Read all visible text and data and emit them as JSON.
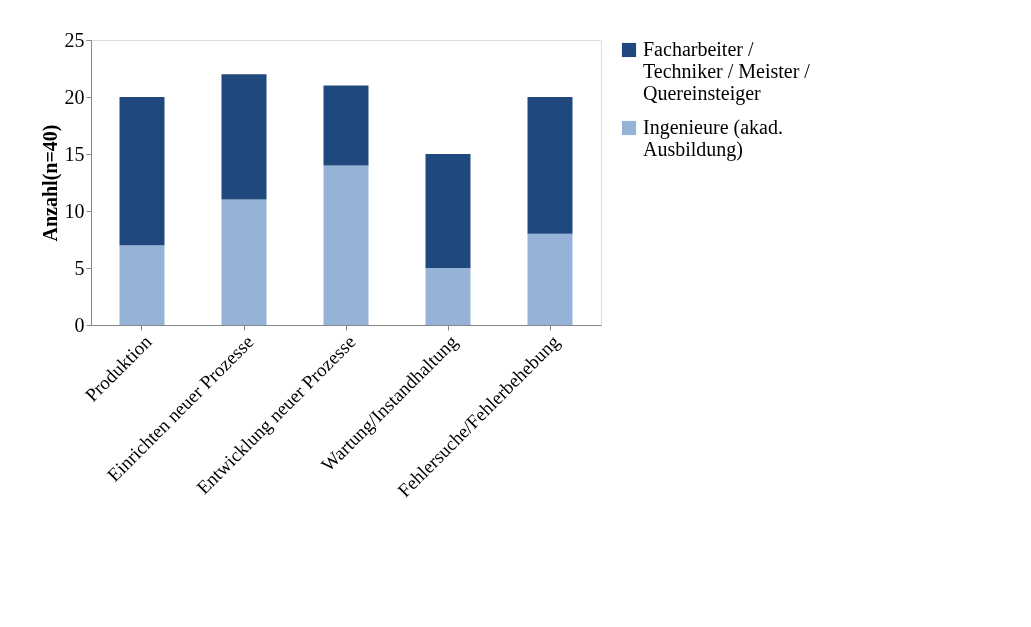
{
  "chart_data": {
    "type": "bar",
    "stacked": true,
    "ylabel": "Anzahl(n=40)",
    "categories": [
      "Produktion",
      "Einrichten neuer Prozesse",
      "Entwicklung neuer Prozesse",
      "Wartung/Instandhaltung",
      "Fehlersuche/Fehlerbehebung"
    ],
    "series": [
      {
        "name": "Ingenieure (akad. Ausbildung)",
        "color": "#95b3d7",
        "values": [
          7,
          11,
          14,
          5,
          8
        ]
      },
      {
        "name": "Facharbeiter / Techniker / Meister / Quereinsteiger",
        "color": "#1f497d",
        "values": [
          13,
          11,
          7,
          10,
          12
        ]
      }
    ],
    "ylim": [
      0,
      25
    ],
    "yticks": [
      0,
      5,
      10,
      15,
      20,
      25
    ],
    "grid": false,
    "legend": "right"
  }
}
